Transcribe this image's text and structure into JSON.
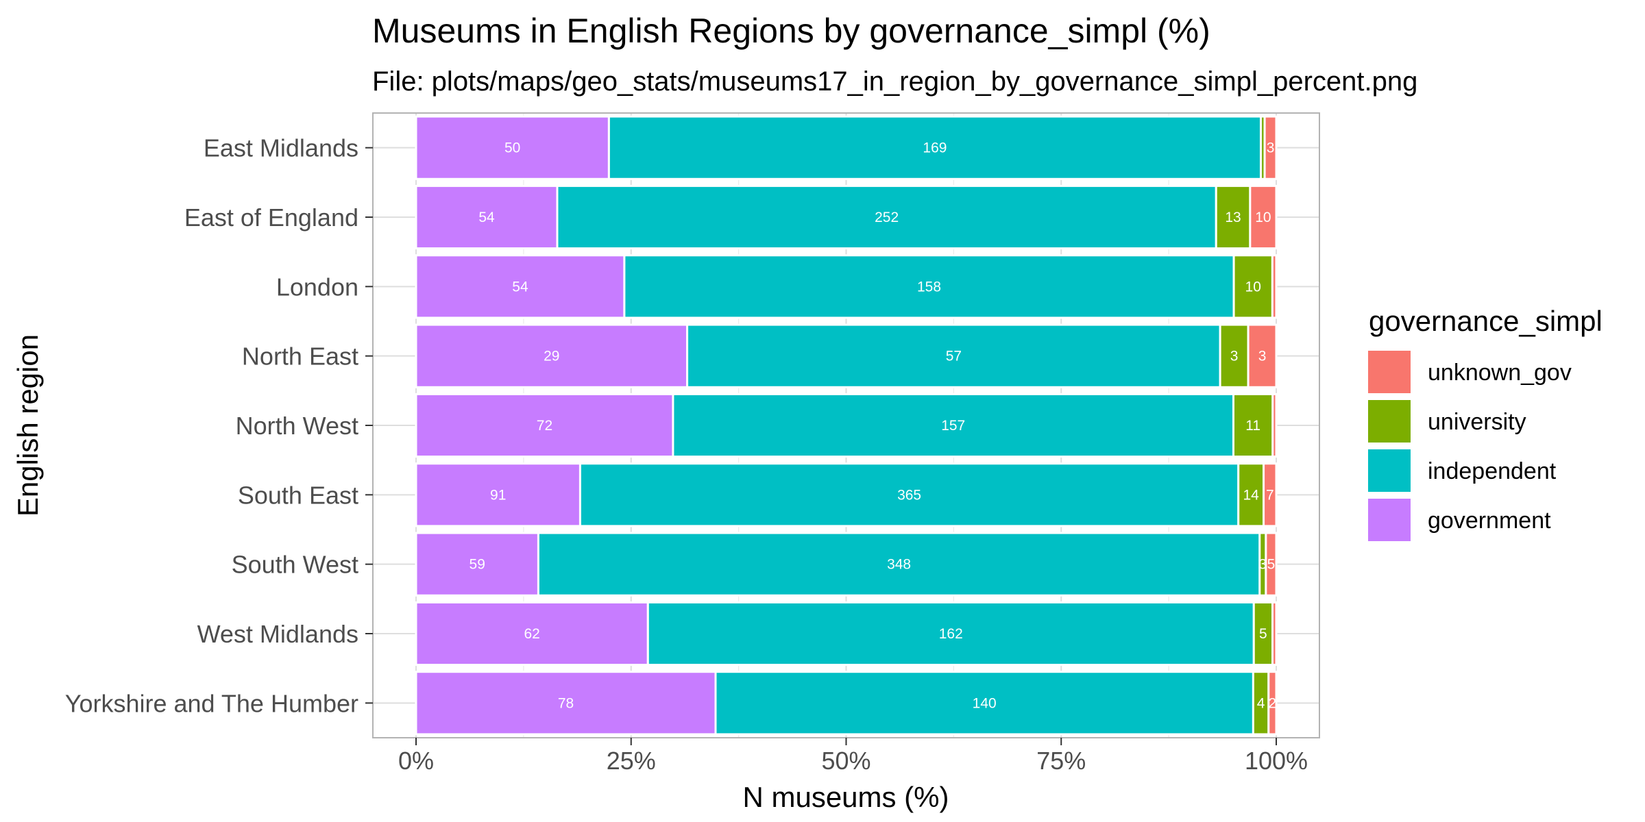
{
  "chart_data": {
    "type": "bar",
    "orientation": "horizontal",
    "stacked": "percent",
    "title": "Museums in English Regions by governance_simpl (%)",
    "subtitle": "File: plots/maps/geo_stats/museums17_in_region_by_governance_simpl_percent.png",
    "xlabel": "N museums (%)",
    "ylabel": "English region",
    "xlim": [
      0,
      100
    ],
    "x_ticks": [
      "0%",
      "25%",
      "50%",
      "75%",
      "100%"
    ],
    "grid": true,
    "legend_position": "right",
    "legend_title": "governance_simpl",
    "legend_order": [
      "unknown_gov",
      "university",
      "independent",
      "government"
    ],
    "categories": [
      "East Midlands",
      "East of England",
      "London",
      "North East",
      "North West",
      "South East",
      "South West",
      "West Midlands",
      "Yorkshire and The Humber"
    ],
    "series": [
      {
        "name": "government",
        "color": "#C77CFF",
        "values": [
          50,
          54,
          54,
          29,
          72,
          91,
          59,
          62,
          78
        ],
        "labels": [
          "50",
          "54",
          "54",
          "29",
          "72",
          "91",
          "59",
          "62",
          "78"
        ]
      },
      {
        "name": "independent",
        "color": "#00BFC4",
        "values": [
          169,
          252,
          158,
          57,
          157,
          365,
          348,
          162,
          140
        ],
        "labels": [
          "169",
          "252",
          "158",
          "57",
          "157",
          "365",
          "348",
          "162",
          "140"
        ]
      },
      {
        "name": "university",
        "color": "#7CAE00",
        "values": [
          1,
          13,
          10,
          3,
          11,
          14,
          3,
          5,
          4
        ],
        "labels": [
          "",
          "13",
          "10",
          "3",
          "11",
          "14",
          "3",
          "5",
          "4"
        ]
      },
      {
        "name": "unknown_gov",
        "color": "#F8766D",
        "values": [
          3,
          10,
          1,
          3,
          1,
          7,
          5,
          1,
          2
        ],
        "labels": [
          "3",
          "10",
          "",
          "3",
          "",
          "7",
          "5",
          "",
          "2"
        ]
      }
    ]
  }
}
